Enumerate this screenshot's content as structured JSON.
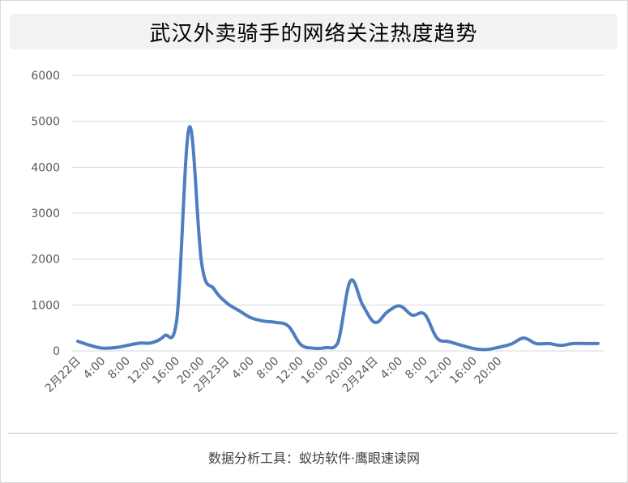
{
  "chart_data": {
    "type": "line",
    "title": "武汉外卖骑手的网络关注热度趋势",
    "ylim": [
      0,
      6000
    ],
    "yticks": [
      "0",
      "1000",
      "2000",
      "3000",
      "4000",
      "5000",
      "6000"
    ],
    "xtick_labels": [
      "2月22日",
      "4:00",
      "8:00",
      "12:00",
      "16:00",
      "20:00",
      "2月23日",
      "4:00",
      "8:00",
      "12:00",
      "16:00",
      "20:00",
      "2月24日",
      "4:00",
      "8:00",
      "12:00",
      "16:00",
      "20:00"
    ],
    "grid": true,
    "series": [
      {
        "color": "#4f7dbf",
        "values": [
          210,
          120,
          60,
          70,
          120,
          170,
          180,
          330,
          700,
          4870,
          1900,
          1350,
          1050,
          880,
          720,
          650,
          620,
          540,
          140,
          60,
          70,
          180,
          1520,
          1000,
          620,
          850,
          980,
          780,
          800,
          280,
          200,
          120,
          50,
          30,
          80,
          150,
          280,
          160,
          160,
          120,
          160,
          160,
          160
        ]
      }
    ]
  },
  "source_text": "数据分析工具：蚁坊软件·鹰眼速读网"
}
